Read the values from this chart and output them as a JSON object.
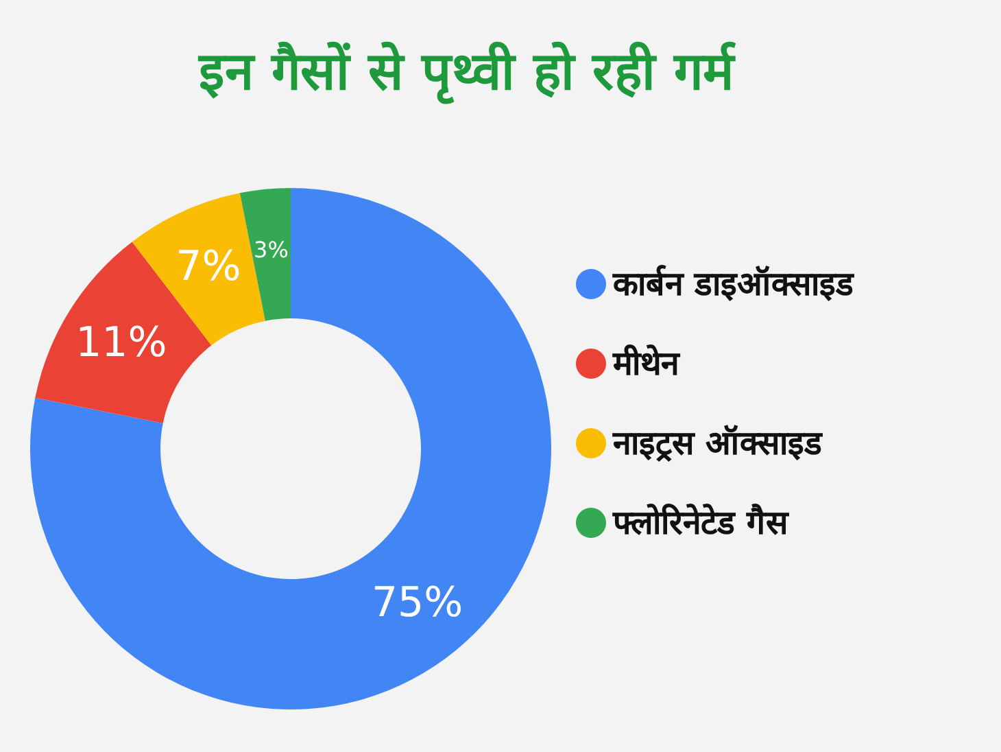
{
  "chart_data": {
    "type": "donut",
    "title": "इन गैसों से पृथ्वी हो रही गर्म",
    "categories": [
      "कार्बन डाइऑक्साइड",
      "मीथेन",
      "नाइट्रस ऑक्साइड",
      "फ्लोरिनेटेड गैस"
    ],
    "values": [
      75,
      11,
      7,
      3
    ],
    "colors": [
      "#4285f4",
      "#ea4335",
      "#fbbc04",
      "#34a853"
    ],
    "value_labels": [
      "75%",
      "11%",
      "7%",
      "3%"
    ],
    "legend": "right"
  }
}
